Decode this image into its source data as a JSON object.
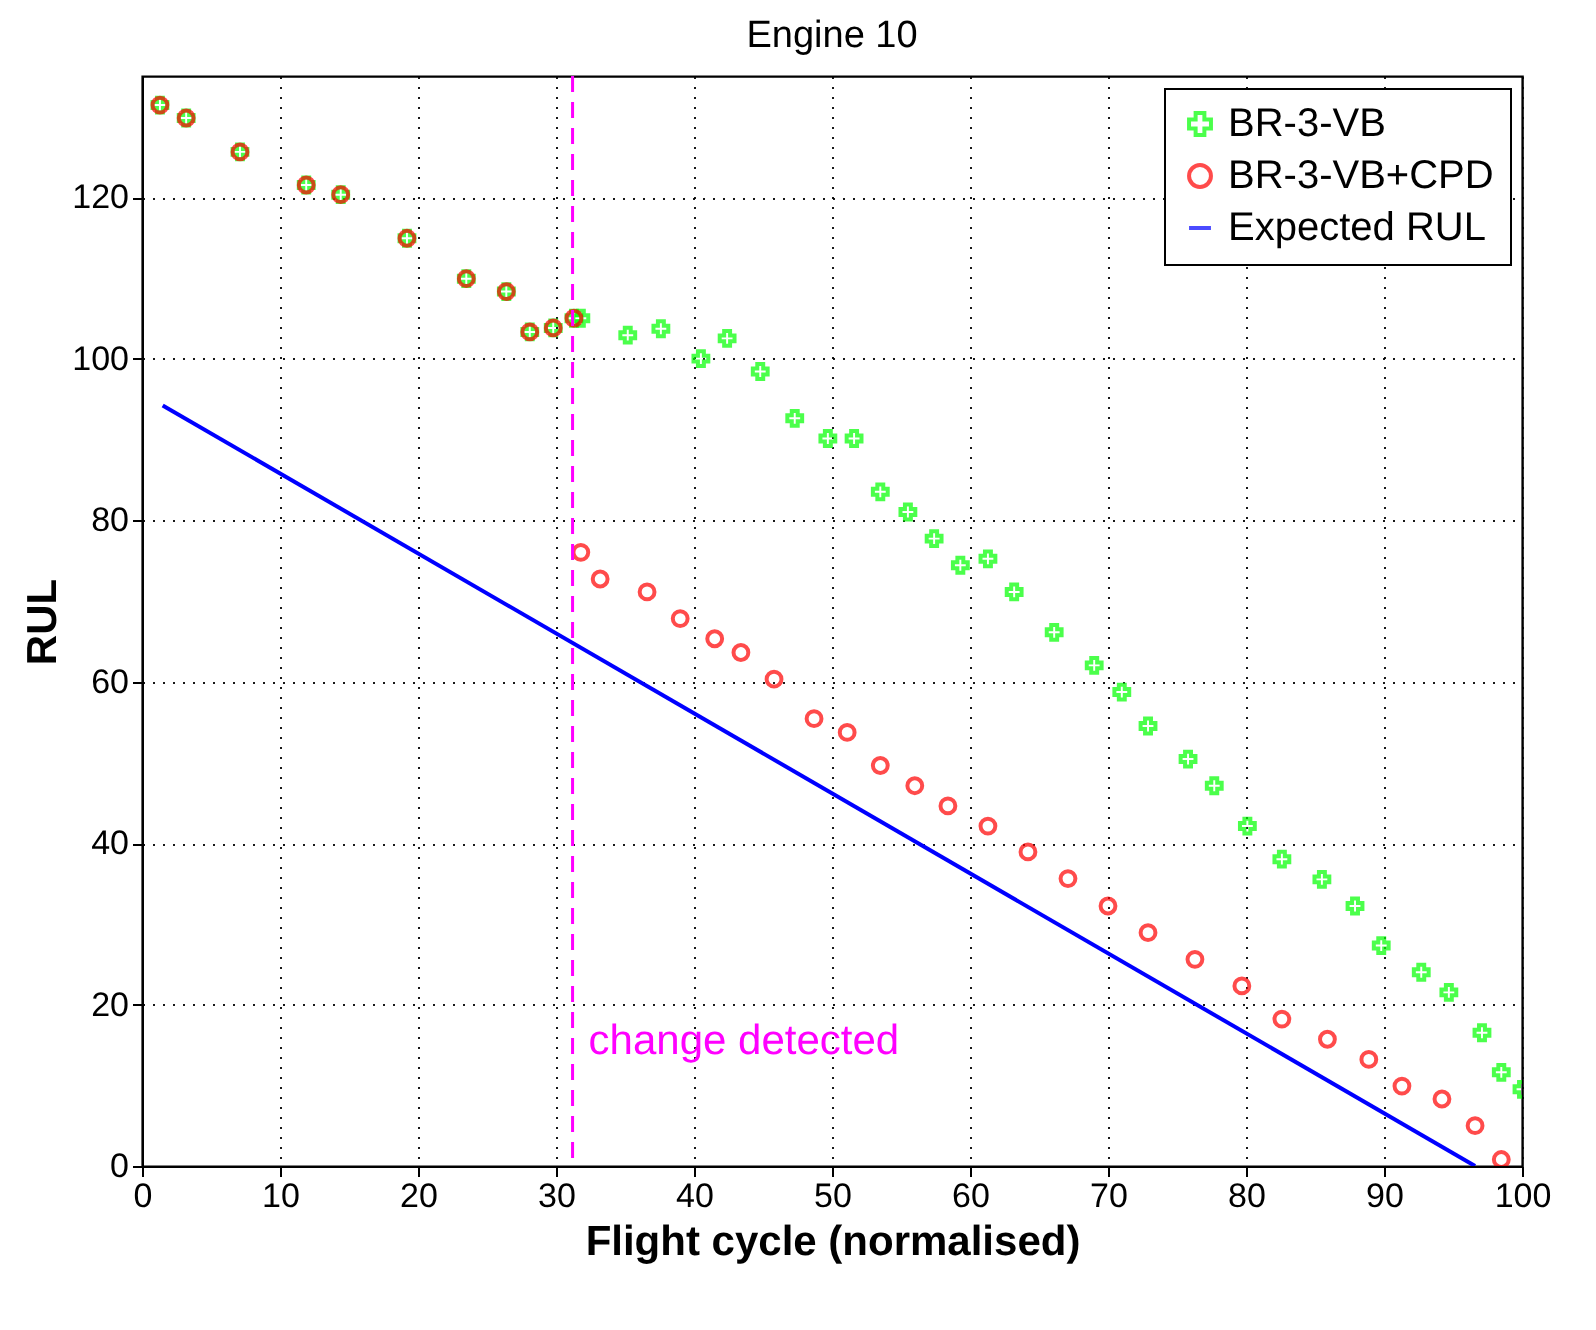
{
  "chart_data": {
    "type": "scatter",
    "title": "Engine 10",
    "xlabel": "Flight cycle (normalised)",
    "ylabel": "RUL",
    "xlim": [
      0,
      100
    ],
    "ylim": [
      0,
      135
    ],
    "xticks": [
      0,
      10,
      20,
      30,
      40,
      50,
      60,
      70,
      80,
      90,
      100
    ],
    "yticks": [
      0,
      20,
      40,
      60,
      80,
      100,
      120
    ],
    "grid": true,
    "legend": "top right",
    "series": [
      {
        "name": "BR-3-VB",
        "color": "#00ff00",
        "marker": "cross",
        "x": [
          1.3,
          3.2,
          7.1,
          11.9,
          14.4,
          19.2,
          23.5,
          26.4,
          28.1,
          29.8,
          31.3,
          31.8,
          35.2,
          37.6,
          40.5,
          42.4,
          44.8,
          47.3,
          49.7,
          51.6,
          53.5,
          55.5,
          57.4,
          59.3,
          61.3,
          63.2,
          66.1,
          69,
          71,
          72.9,
          75.8,
          77.7,
          80.1,
          82.6,
          85.5,
          87.9,
          89.8,
          92.7,
          94.7,
          97.1,
          98.5,
          100
        ],
        "values": [
          131.4,
          129.8,
          125.6,
          121.5,
          120.3,
          114.9,
          109.9,
          108.3,
          103.3,
          103.8,
          105,
          105,
          102.9,
          103.7,
          100,
          102.5,
          98.4,
          92.6,
          90.1,
          90.1,
          83.5,
          81,
          77.7,
          74.4,
          75.2,
          71.1,
          66.1,
          62,
          58.7,
          54.5,
          50.4,
          47.1,
          42.1,
          38,
          35.5,
          32.2,
          27.3,
          24,
          21.5,
          16.5,
          11.6,
          9.5
        ]
      },
      {
        "name": "BR-3-VB+CPD",
        "color": "#ff0000",
        "marker": "circle",
        "x": [
          1.3,
          3.2,
          7.1,
          11.9,
          14.4,
          19.2,
          23.5,
          26.4,
          28.1,
          29.8,
          31.3,
          31.8,
          33.2,
          36.6,
          39,
          41.5,
          43.4,
          45.8,
          48.7,
          51.1,
          53.5,
          56,
          58.4,
          61.3,
          64.2,
          67.1,
          70,
          72.9,
          76.3,
          79.7,
          82.6,
          85.9,
          88.9,
          91.3,
          94.2,
          96.6,
          98.5
        ],
        "values": [
          131.4,
          129.8,
          125.6,
          121.5,
          120.3,
          114.9,
          109.9,
          108.3,
          103.3,
          103.8,
          105,
          76,
          72.7,
          71.1,
          67.8,
          65.3,
          63.6,
          60.3,
          55.4,
          53.7,
          49.6,
          47.1,
          44.6,
          42.1,
          38.9,
          35.6,
          32.2,
          28.9,
          25.6,
          22.3,
          18.2,
          15.7,
          13.2,
          9.9,
          8.3,
          5,
          0.8
        ]
      },
      {
        "name": "Expected RUL",
        "color": "#0000ff",
        "type": "line",
        "marker": "none",
        "x": [
          1.5,
          96.6
        ],
        "values": [
          94.2,
          0
        ]
      }
    ],
    "ref_lines": [
      {
        "axis": "x",
        "value": 31.2,
        "label": "change detected",
        "color": "#ff00ff",
        "line_style": "dashed"
      }
    ]
  }
}
